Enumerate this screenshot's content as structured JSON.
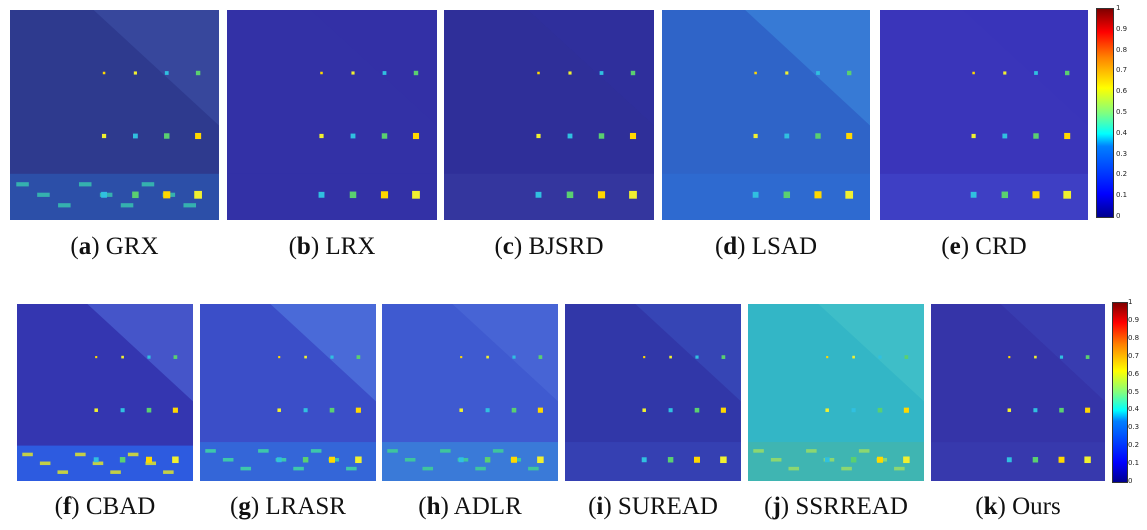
{
  "rows": [
    {
      "panels": [
        {
          "letter": "a",
          "method": "GRX",
          "bg": "#2e3a8e",
          "variant": "grx"
        },
        {
          "letter": "b",
          "method": "LRX",
          "bg": "#3331a6",
          "variant": "lrx"
        },
        {
          "letter": "c",
          "method": "BJSRD",
          "bg": "#2f2f99",
          "variant": "bjsrd"
        },
        {
          "letter": "d",
          "method": "LSAD",
          "bg": "#2f64c8",
          "variant": "lsad"
        },
        {
          "letter": "e",
          "method": "CRD",
          "bg": "#3a35ba",
          "variant": "crd"
        }
      ],
      "colorbar_ticks": [
        "1",
        "0.9",
        "0.8",
        "0.7",
        "0.6",
        "0.5",
        "0.4",
        "0.3",
        "0.2",
        "0.1",
        "0"
      ]
    },
    {
      "panels": [
        {
          "letter": "f",
          "method": "CBAD",
          "bg": "#3436b0",
          "variant": "cbad"
        },
        {
          "letter": "g",
          "method": "LRASR",
          "bg": "#3b4ec8",
          "variant": "lrasr"
        },
        {
          "letter": "h",
          "method": "ADLR",
          "bg": "#3f5ad0",
          "variant": "adlr"
        },
        {
          "letter": "i",
          "method": "SUREAD",
          "bg": "#3137a8",
          "variant": "suread"
        },
        {
          "letter": "j",
          "method": "SSRREAD",
          "bg": "#33b6c6",
          "variant": "ssrread"
        },
        {
          "letter": "k",
          "method": "Ours",
          "bg": "#3534a8",
          "variant": "ours"
        }
      ],
      "colorbar_ticks": [
        "1",
        "0.9",
        "0.8",
        "0.7",
        "0.6",
        "0.5",
        "0.4",
        "0.3",
        "0.2",
        "0.1",
        "0"
      ]
    }
  ],
  "colormap": "jet"
}
